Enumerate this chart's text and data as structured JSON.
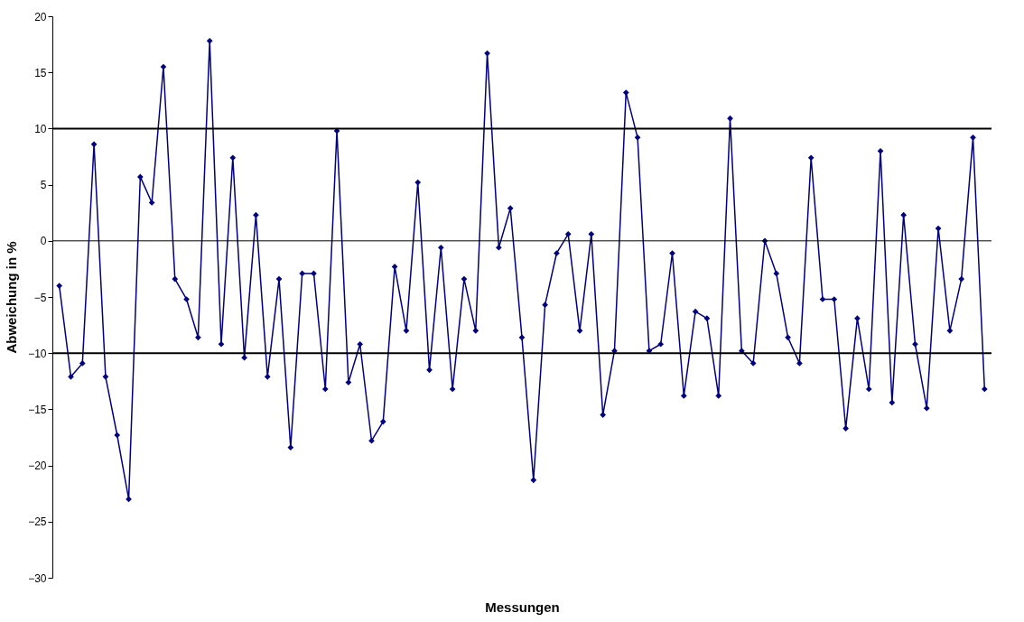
{
  "chart_data": {
    "type": "line",
    "xlabel": "Messungen",
    "ylabel": "Abweichung in %",
    "categories": [
      null,
      null,
      null,
      null,
      null,
      null,
      null,
      null,
      null,
      null,
      null,
      null,
      null,
      null,
      null,
      null,
      null,
      null,
      null,
      null,
      null,
      null,
      null,
      null,
      null,
      null,
      null,
      null,
      null,
      null,
      null,
      null,
      null,
      null,
      null,
      null,
      null,
      null,
      null,
      null,
      null,
      null,
      null,
      null,
      null,
      null,
      null,
      null,
      null,
      null,
      null,
      null,
      null,
      null,
      null,
      null,
      null,
      null,
      null,
      null,
      null,
      null,
      null,
      null,
      null,
      null,
      null,
      null,
      null,
      null,
      null,
      null,
      null,
      null,
      null,
      null,
      null,
      null,
      null,
      null,
      null
    ],
    "series": [
      {
        "color": "#000080",
        "values": [
          -4,
          -12.1,
          -10.9,
          8.6,
          -12.1,
          -17.3,
          -23,
          5.7,
          3.4,
          15.5,
          -3.4,
          -5.2,
          -8.6,
          17.8,
          -9.2,
          7.4,
          -10.4,
          2.3,
          -12.1,
          -3.4,
          -18.4,
          -2.9,
          -2.9,
          -13.2,
          9.8,
          -12.6,
          -9.2,
          -17.8,
          -16.1,
          -2.3,
          -8,
          5.2,
          -11.5,
          -0.6,
          -13.2,
          -3.4,
          -8,
          16.7,
          -0.6,
          2.9,
          -8.6,
          -21.3,
          -5.7,
          -1.1,
          0.6,
          -8,
          0.6,
          -15.5,
          -9.8,
          13.2,
          9.2,
          -9.8,
          -9.2,
          -1.1,
          -13.8,
          -6.3,
          -6.9,
          -13.8,
          10.9,
          -9.8,
          -10.9,
          0,
          -2.9,
          -8.6,
          -10.9,
          7.4,
          -5.2,
          -5.2,
          -16.7,
          -6.9,
          -13.2,
          8,
          -14.4,
          2.3,
          -9.2,
          -14.9,
          1.1,
          -8,
          -3.4,
          9.2,
          -13.2
        ]
      }
    ],
    "ylim": [
      -30,
      20
    ],
    "yticks": [
      -30,
      -25,
      -20,
      -15,
      -10,
      -5,
      0,
      5,
      10,
      15,
      20
    ],
    "grid": false,
    "marker": "diamond",
    "line_style": "solid",
    "ref_lines": [
      {
        "axis": "y",
        "value": 10,
        "color": "#000000"
      },
      {
        "axis": "y",
        "value": 0,
        "color": "#000000"
      },
      {
        "axis": "y",
        "value": -10,
        "color": "#000000"
      }
    ]
  }
}
